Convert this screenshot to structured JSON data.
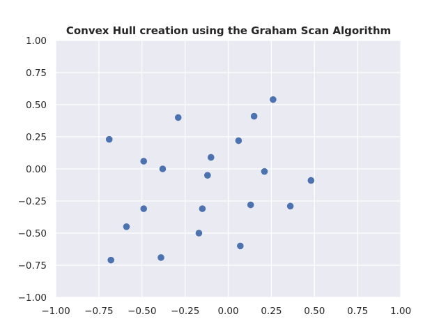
{
  "chart_data": {
    "type": "scatter",
    "title": "Convex Hull creation using the Graham Scan Algorithm",
    "xlabel": "",
    "ylabel": "",
    "xlim": [
      -1.0,
      1.0
    ],
    "ylim": [
      -1.0,
      1.0
    ],
    "x_ticks": [
      "−1.00",
      "−0.75",
      "−0.50",
      "−0.25",
      "0.00",
      "0.25",
      "0.50",
      "0.75",
      "1.00"
    ],
    "y_ticks": [
      "1.00",
      "0.75",
      "0.50",
      "0.25",
      "0.00",
      "−0.25",
      "−0.50",
      "−0.75",
      "−1.00"
    ],
    "x_tick_values": [
      -1.0,
      -0.75,
      -0.5,
      -0.25,
      0.0,
      0.25,
      0.5,
      0.75,
      1.0
    ],
    "y_tick_values": [
      1.0,
      0.75,
      0.5,
      0.25,
      0.0,
      -0.25,
      -0.5,
      -0.75,
      -1.0
    ],
    "grid": true,
    "legend": "none",
    "colors": {
      "point": "#4c72b0",
      "background": "#eaeaf2",
      "grid": "#ffffff",
      "text": "#262626"
    },
    "series": [
      {
        "points": [
          {
            "x": -0.69,
            "y": 0.23
          },
          {
            "x": -0.29,
            "y": 0.4
          },
          {
            "x": 0.26,
            "y": 0.54
          },
          {
            "x": 0.15,
            "y": 0.41
          },
          {
            "x": 0.06,
            "y": 0.22
          },
          {
            "x": -0.1,
            "y": 0.09
          },
          {
            "x": -0.49,
            "y": 0.06
          },
          {
            "x": -0.38,
            "y": 0.0
          },
          {
            "x": -0.12,
            "y": -0.05
          },
          {
            "x": 0.21,
            "y": -0.02
          },
          {
            "x": 0.48,
            "y": -0.09
          },
          {
            "x": 0.13,
            "y": -0.28
          },
          {
            "x": 0.36,
            "y": -0.29
          },
          {
            "x": -0.49,
            "y": -0.31
          },
          {
            "x": -0.15,
            "y": -0.31
          },
          {
            "x": -0.59,
            "y": -0.45
          },
          {
            "x": -0.17,
            "y": -0.5
          },
          {
            "x": 0.07,
            "y": -0.6
          },
          {
            "x": -0.39,
            "y": -0.69
          },
          {
            "x": -0.68,
            "y": -0.71
          }
        ]
      }
    ]
  }
}
